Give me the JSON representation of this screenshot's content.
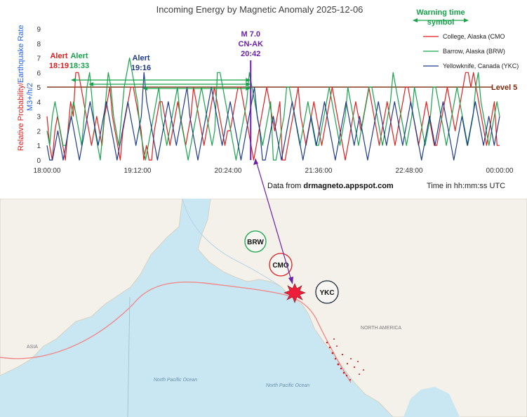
{
  "chart_data": {
    "type": "line",
    "title": "Incoming Energy by Magnetic Anomaly 2025-12-06",
    "ylabel_red": "Relative Probability/",
    "ylabel_blue": "Earthquake Rate",
    "ylabel_blue2": "M3+/h/2",
    "xlabel": "Time in hh:mm:ss UTC",
    "source_prefix": "Data from ",
    "source_site": "drmagneto.appspot.com",
    "ylim": [
      0,
      9
    ],
    "yticks": [
      "0",
      "1",
      "2",
      "3",
      "4",
      "5",
      "6",
      "7",
      "8",
      "9"
    ],
    "xlim_minutes": [
      0,
      360
    ],
    "xticks": [
      {
        "label": "18:00:00",
        "minute": 0
      },
      {
        "label": "19:12:00",
        "minute": 72
      },
      {
        "label": "20:24:00",
        "minute": 144
      },
      {
        "label": "21:36:00",
        "minute": 216
      },
      {
        "label": "22:48:00",
        "minute": 288
      },
      {
        "label": "00:00:00",
        "minute": 360
      }
    ],
    "level": {
      "label": "Level 5",
      "value": 5,
      "color": "#7b2c0c"
    },
    "legend_placement": "top-right",
    "warning_symbol": {
      "line1": "Warning time",
      "line2": "symbol",
      "color": "#17a34a"
    },
    "series": [
      {
        "name": "College, Alaska (CMO",
        "color": "#e11d1d",
        "values": [
          3,
          1,
          0,
          2,
          3,
          2,
          1,
          0,
          2,
          4,
          3,
          6,
          6,
          5,
          4,
          3,
          2,
          1,
          2,
          3,
          2,
          1,
          3,
          4,
          5,
          3,
          2,
          1,
          0,
          2,
          3,
          4,
          5,
          5,
          4,
          3,
          2,
          0,
          1,
          0,
          0,
          2,
          3,
          4,
          4,
          3,
          2,
          1,
          2,
          3,
          4,
          3,
          2,
          1,
          2,
          3,
          5,
          4,
          3,
          2,
          1,
          2,
          3,
          4,
          5,
          4,
          3,
          2,
          1,
          2,
          2,
          3,
          4,
          5,
          5,
          4,
          3,
          2,
          1,
          0,
          1,
          2,
          3,
          4,
          5,
          4,
          3,
          2,
          3,
          4,
          0,
          0,
          1,
          2,
          3,
          4,
          5,
          3,
          2,
          1,
          2,
          3,
          4,
          3,
          2,
          1,
          2,
          3,
          4,
          5,
          4,
          3,
          2,
          1,
          0,
          1,
          2,
          3,
          4,
          3,
          2,
          3,
          4,
          5,
          4,
          3,
          2,
          1,
          2,
          3,
          4,
          3,
          2,
          1,
          2,
          3,
          4,
          5,
          5,
          4,
          3,
          2,
          1,
          2,
          3,
          4,
          3,
          2,
          1,
          1,
          2,
          3,
          4,
          5,
          4,
          3,
          2,
          3,
          4,
          5,
          6,
          6,
          5,
          6,
          5,
          4,
          3,
          2,
          1,
          2,
          3,
          4,
          1,
          1
        ]
      },
      {
        "name": "Barrow, Alaska (BRW)",
        "color": "#16a34a",
        "values": [
          2,
          1,
          3,
          4,
          3,
          2,
          1,
          1,
          2,
          3,
          4,
          3,
          2,
          1,
          3,
          5,
          6,
          4,
          2,
          1,
          0,
          2,
          4,
          6,
          5,
          3,
          2,
          1,
          3,
          5,
          6,
          7,
          6,
          5,
          4,
          2,
          1,
          0,
          1,
          2,
          3,
          4,
          5,
          3,
          2,
          1,
          2,
          3,
          4,
          5,
          3,
          2,
          1,
          0,
          1,
          2,
          3,
          4,
          5,
          4,
          3,
          2,
          1,
          2,
          6,
          6,
          5,
          4,
          3,
          2,
          1,
          0,
          1,
          2,
          3,
          4,
          6,
          5,
          4,
          3,
          2,
          1,
          2,
          3,
          4,
          0,
          0,
          1,
          2,
          3,
          5,
          5,
          4,
          3,
          2,
          1,
          2,
          3,
          4,
          3,
          2,
          1,
          1,
          2,
          3,
          4,
          5,
          4,
          3,
          2,
          1,
          2,
          3,
          5,
          4,
          3,
          2,
          1,
          2,
          3,
          4,
          5,
          5,
          4,
          3,
          2,
          1,
          2,
          3,
          4,
          6,
          5,
          4,
          3,
          2,
          1,
          2,
          3,
          5,
          4,
          3,
          2,
          1,
          2,
          3,
          5,
          5,
          4,
          3,
          2,
          1,
          2,
          3,
          4,
          5,
          4,
          3,
          2,
          1,
          2,
          3,
          5,
          6,
          4,
          3,
          2,
          1,
          2,
          3,
          4,
          3
        ]
      },
      {
        "name": "Yellowknife, Canada (YKC)",
        "color": "#1e3a8a",
        "values": [
          1,
          0,
          0,
          1,
          2,
          1,
          0,
          1,
          2,
          3,
          2,
          1,
          0,
          1,
          2,
          3,
          4,
          3,
          2,
          1,
          2,
          3,
          4,
          3,
          2,
          1,
          0,
          1,
          2,
          3,
          4,
          3,
          2,
          1,
          2,
          3,
          6,
          4,
          3,
          2,
          1,
          0,
          1,
          2,
          3,
          4,
          3,
          2,
          1,
          2,
          3,
          4,
          5,
          3,
          2,
          1,
          0,
          1,
          2,
          3,
          4,
          5,
          4,
          3,
          2,
          1,
          2,
          3,
          4,
          3,
          2,
          1,
          0,
          1,
          2,
          3,
          4,
          5,
          3,
          2,
          0,
          0,
          1,
          2,
          3,
          2,
          1,
          0,
          1,
          2,
          3,
          4,
          3,
          2,
          1,
          0,
          1,
          2,
          3,
          2,
          1,
          2,
          3,
          4,
          3,
          2,
          1,
          0,
          1,
          2,
          3,
          4,
          3,
          2,
          1,
          2,
          3,
          2,
          1,
          0,
          1,
          2,
          3,
          4,
          3,
          2,
          1,
          2,
          3,
          4,
          3,
          2,
          1,
          2,
          3,
          4,
          3,
          2,
          1,
          0,
          1,
          2,
          3,
          2,
          1,
          2,
          3,
          4,
          3,
          2,
          1,
          0,
          1,
          2,
          3,
          2,
          1,
          2,
          3,
          4,
          3,
          2,
          1,
          2,
          3,
          2,
          1,
          2,
          3
        ]
      }
    ],
    "alerts": [
      {
        "word": "Alert",
        "time": "18:19",
        "minute": 19,
        "color": "#e11d1d"
      },
      {
        "word": "Alert",
        "time": "18:33",
        "minute": 33,
        "color": "#16a34a"
      },
      {
        "word": "Alert",
        "time": "19:16",
        "minute": 76,
        "color": "#1e3a8a"
      }
    ],
    "event": {
      "line1": "M 7.0",
      "line2": "CN-AK",
      "line3": "20:42",
      "minute": 162,
      "color": "#6b21a8"
    }
  },
  "map": {
    "stations": [
      "BRW",
      "CMO",
      "YKC"
    ],
    "stationColors": [
      "#16a34a",
      "#e11d1d",
      "#1e293b"
    ],
    "labels": [
      "ASIA",
      "NORTH AMERICA",
      "North Pacific Ocean",
      "North Pacific Ocean"
    ],
    "colors": {
      "ocean": "#c9e6f3",
      "land": "#f3f1e9",
      "boundary": "#f2a3a3"
    }
  }
}
